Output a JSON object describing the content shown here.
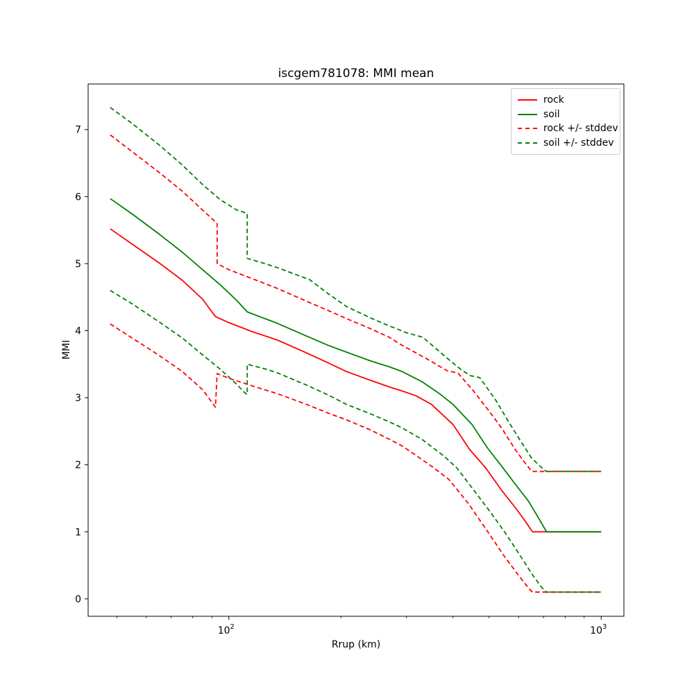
{
  "chart_data": {
    "type": "line",
    "title": "iscgem781078: MMI mean",
    "xlabel": "Rrup (km)",
    "ylabel": "MMI",
    "grid": false,
    "legend_position": "upper right",
    "axes": {
      "x": {
        "scale": "log",
        "limits_log10": [
          1.622,
          3.061
        ],
        "major_ticks": [
          {
            "value": 100,
            "mantissa": "10",
            "exponent": "2"
          },
          {
            "value": 1000,
            "mantissa": "10",
            "exponent": "3"
          }
        ],
        "minor_ticks": [
          50,
          60,
          70,
          80,
          90,
          200,
          300,
          400,
          500,
          600,
          700,
          800,
          900
        ]
      },
      "y": {
        "scale": "linear",
        "limits": [
          -0.26,
          7.68
        ],
        "ticks": [
          0,
          1,
          2,
          3,
          4,
          5,
          6,
          7
        ]
      }
    },
    "legend": {
      "items": [
        {
          "label": "rock",
          "color": "#ff0000",
          "style": "solid"
        },
        {
          "label": "soil",
          "color": "#008000",
          "style": "solid"
        },
        {
          "label": "rock +/- stddev",
          "color": "#ff0000",
          "style": "dashed"
        },
        {
          "label": "soil +/- stddev",
          "color": "#008000",
          "style": "dashed"
        }
      ]
    },
    "series": [
      {
        "name": "rock-mean",
        "color": "#ff0000",
        "style": "solid",
        "points": [
          [
            48,
            5.52
          ],
          [
            55,
            5.29
          ],
          [
            65,
            5.01
          ],
          [
            75,
            4.75
          ],
          [
            85,
            4.47
          ],
          [
            92,
            4.21
          ],
          [
            100,
            4.12
          ],
          [
            115,
            3.99
          ],
          [
            135,
            3.86
          ],
          [
            160,
            3.68
          ],
          [
            185,
            3.52
          ],
          [
            207,
            3.39
          ],
          [
            240,
            3.26
          ],
          [
            270,
            3.16
          ],
          [
            292,
            3.1
          ],
          [
            318,
            3.03
          ],
          [
            350,
            2.9
          ],
          [
            400,
            2.6
          ],
          [
            443,
            2.23
          ],
          [
            490,
            1.95
          ],
          [
            540,
            1.62
          ],
          [
            590,
            1.35
          ],
          [
            621,
            1.18
          ],
          [
            654,
            1.0
          ],
          [
            1000,
            1.0
          ]
        ]
      },
      {
        "name": "soil-mean",
        "color": "#008000",
        "style": "solid",
        "points": [
          [
            48,
            5.97
          ],
          [
            55,
            5.74
          ],
          [
            65,
            5.44
          ],
          [
            75,
            5.17
          ],
          [
            85,
            4.91
          ],
          [
            95,
            4.68
          ],
          [
            105,
            4.45
          ],
          [
            112,
            4.28
          ],
          [
            125,
            4.18
          ],
          [
            135,
            4.11
          ],
          [
            160,
            3.93
          ],
          [
            185,
            3.78
          ],
          [
            207,
            3.68
          ],
          [
            240,
            3.55
          ],
          [
            270,
            3.46
          ],
          [
            292,
            3.39
          ],
          [
            330,
            3.24
          ],
          [
            370,
            3.05
          ],
          [
            400,
            2.9
          ],
          [
            450,
            2.6
          ],
          [
            495,
            2.25
          ],
          [
            540,
            1.98
          ],
          [
            590,
            1.7
          ],
          [
            637,
            1.46
          ],
          [
            680,
            1.2
          ],
          [
            713,
            1.0
          ],
          [
            1000,
            1.0
          ]
        ]
      },
      {
        "name": "rock-plus-stddev",
        "color": "#ff0000",
        "style": "dashed",
        "points": [
          [
            48,
            6.92
          ],
          [
            55,
            6.67
          ],
          [
            65,
            6.36
          ],
          [
            75,
            6.08
          ],
          [
            85,
            5.8
          ],
          [
            93,
            5.6
          ],
          [
            93,
            5.0
          ],
          [
            100,
            4.91
          ],
          [
            115,
            4.78
          ],
          [
            135,
            4.63
          ],
          [
            160,
            4.45
          ],
          [
            185,
            4.3
          ],
          [
            207,
            4.18
          ],
          [
            240,
            4.03
          ],
          [
            270,
            3.9
          ],
          [
            292,
            3.78
          ],
          [
            318,
            3.67
          ],
          [
            350,
            3.54
          ],
          [
            386,
            3.4
          ],
          [
            412,
            3.37
          ],
          [
            454,
            3.1
          ],
          [
            500,
            2.8
          ],
          [
            540,
            2.55
          ],
          [
            587,
            2.23
          ],
          [
            620,
            2.05
          ],
          [
            651,
            1.9
          ],
          [
            1000,
            1.9
          ]
        ]
      },
      {
        "name": "rock-minus-stddev",
        "color": "#ff0000",
        "style": "dashed",
        "points": [
          [
            48,
            4.1
          ],
          [
            55,
            3.89
          ],
          [
            65,
            3.63
          ],
          [
            75,
            3.39
          ],
          [
            85,
            3.12
          ],
          [
            92,
            2.86
          ],
          [
            93,
            3.36
          ],
          [
            100,
            3.29
          ],
          [
            115,
            3.18
          ],
          [
            135,
            3.06
          ],
          [
            160,
            2.91
          ],
          [
            185,
            2.77
          ],
          [
            207,
            2.67
          ],
          [
            240,
            2.52
          ],
          [
            270,
            2.38
          ],
          [
            292,
            2.28
          ],
          [
            320,
            2.13
          ],
          [
            352,
            1.97
          ],
          [
            390,
            1.78
          ],
          [
            440,
            1.42
          ],
          [
            489,
            1.05
          ],
          [
            550,
            0.63
          ],
          [
            600,
            0.35
          ],
          [
            640,
            0.15
          ],
          [
            654,
            0.1
          ],
          [
            1000,
            0.1
          ]
        ]
      },
      {
        "name": "soil-plus-stddev",
        "color": "#008000",
        "style": "dashed",
        "points": [
          [
            48,
            7.33
          ],
          [
            55,
            7.09
          ],
          [
            65,
            6.77
          ],
          [
            75,
            6.47
          ],
          [
            85,
            6.18
          ],
          [
            95,
            5.95
          ],
          [
            105,
            5.8
          ],
          [
            112,
            5.75
          ],
          [
            112,
            5.08
          ],
          [
            125,
            5.0
          ],
          [
            135,
            4.94
          ],
          [
            165,
            4.76
          ],
          [
            185,
            4.55
          ],
          [
            207,
            4.36
          ],
          [
            240,
            4.19
          ],
          [
            270,
            4.07
          ],
          [
            300,
            3.97
          ],
          [
            332,
            3.9
          ],
          [
            380,
            3.62
          ],
          [
            420,
            3.42
          ],
          [
            445,
            3.33
          ],
          [
            472,
            3.3
          ],
          [
            520,
            2.97
          ],
          [
            560,
            2.67
          ],
          [
            600,
            2.4
          ],
          [
            650,
            2.1
          ],
          [
            700,
            1.93
          ],
          [
            713,
            1.9
          ],
          [
            1000,
            1.9
          ]
        ]
      },
      {
        "name": "soil-minus-stddev",
        "color": "#008000",
        "style": "dashed",
        "points": [
          [
            48,
            4.6
          ],
          [
            55,
            4.4
          ],
          [
            65,
            4.13
          ],
          [
            75,
            3.89
          ],
          [
            85,
            3.64
          ],
          [
            95,
            3.42
          ],
          [
            105,
            3.2
          ],
          [
            110,
            3.08
          ],
          [
            112,
            3.05
          ],
          [
            112,
            3.5
          ],
          [
            125,
            3.43
          ],
          [
            135,
            3.37
          ],
          [
            160,
            3.2
          ],
          [
            185,
            3.04
          ],
          [
            207,
            2.9
          ],
          [
            240,
            2.76
          ],
          [
            270,
            2.64
          ],
          [
            292,
            2.55
          ],
          [
            330,
            2.38
          ],
          [
            380,
            2.12
          ],
          [
            410,
            1.95
          ],
          [
            445,
            1.69
          ],
          [
            500,
            1.32
          ],
          [
            550,
            1.0
          ],
          [
            600,
            0.68
          ],
          [
            650,
            0.38
          ],
          [
            690,
            0.18
          ],
          [
            713,
            0.1
          ],
          [
            1000,
            0.1
          ]
        ]
      }
    ]
  }
}
